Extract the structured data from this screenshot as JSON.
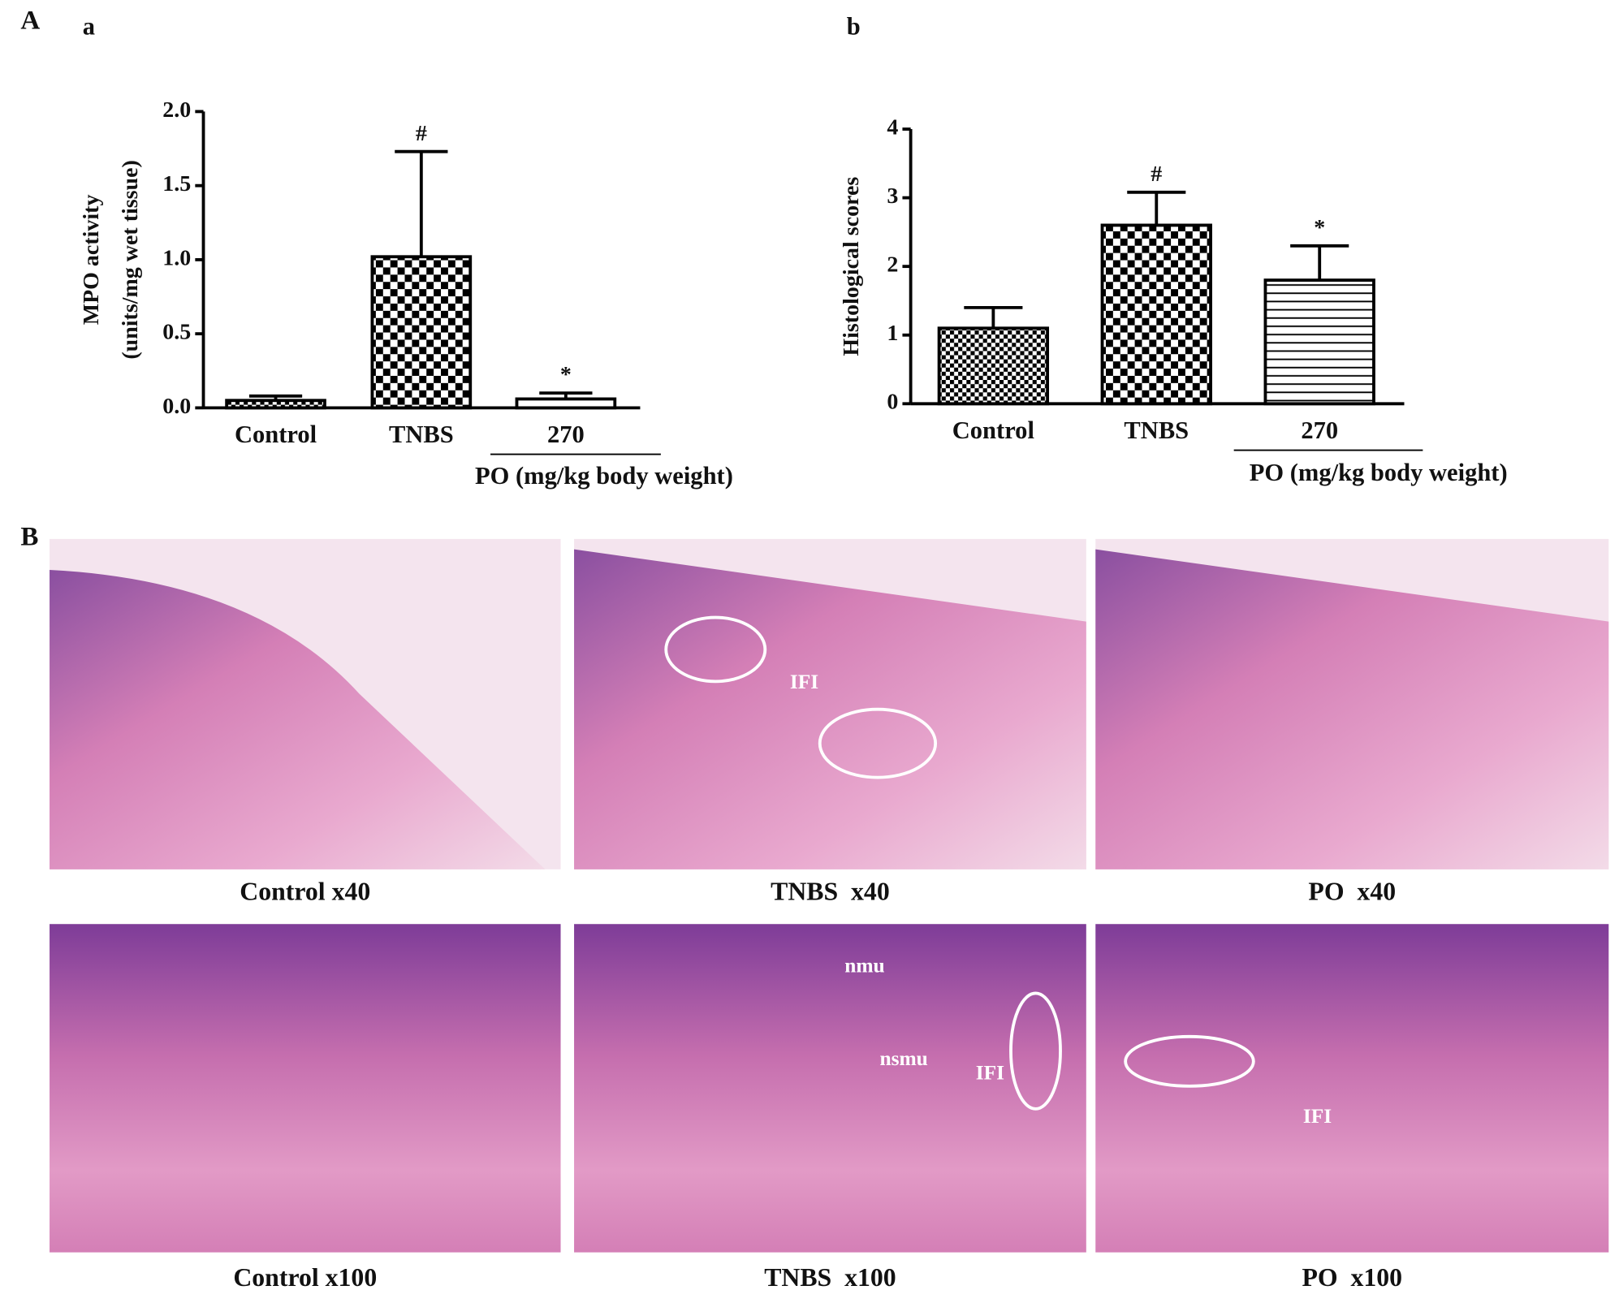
{
  "panel_labels": [
    "A",
    "B"
  ],
  "chart_data": [
    {
      "type": "bar",
      "label": "a",
      "ylabel": [
        "MPO activity",
        "(units/mg wet tissue)"
      ],
      "categories": [
        "Control",
        "TNBS",
        "270"
      ],
      "group_label": "PO (mg/kg body weight)",
      "values": [
        0.05,
        1.02,
        0.06
      ],
      "errors": [
        0.03,
        0.71,
        0.04
      ],
      "annotations": [
        null,
        "#",
        "*"
      ],
      "patterns": [
        "checker-small",
        "checker",
        "white"
      ],
      "ylim": [
        0,
        2.0
      ],
      "yticks": [
        {
          "value": 0,
          "label": "0.0"
        },
        {
          "value": 0.5,
          "label": "0.5"
        },
        {
          "value": 1,
          "label": "1.0"
        },
        {
          "value": 1.5,
          "label": "1.5"
        },
        {
          "value": 2,
          "label": "2.0"
        }
      ]
    },
    {
      "type": "bar",
      "label": "b",
      "ylabel": [
        "Histological scores"
      ],
      "categories": [
        "Control",
        "TNBS",
        "270"
      ],
      "group_label": "PO (mg/kg body weight)",
      "values": [
        1.1,
        2.6,
        1.8
      ],
      "errors": [
        0.3,
        0.48,
        0.5
      ],
      "annotations": [
        null,
        "#",
        "*"
      ],
      "patterns": [
        "checker-small",
        "checker",
        "hlines"
      ],
      "ylim": [
        0,
        4
      ],
      "yticks": [
        0,
        1,
        2,
        3,
        4
      ]
    }
  ],
  "histology": {
    "panels": [
      {
        "caption": "Control x40",
        "annotations": []
      },
      {
        "caption": "TNBS  x40",
        "annotations": [
          "IFI"
        ]
      },
      {
        "caption": "PO  x40",
        "annotations": []
      },
      {
        "caption": "Control x100",
        "annotations": []
      },
      {
        "caption": "TNBS  x100",
        "annotations": [
          "nmu",
          "nsmu",
          "IFI"
        ]
      },
      {
        "caption": "PO  x100",
        "annotations": [
          "IFI"
        ]
      }
    ]
  }
}
